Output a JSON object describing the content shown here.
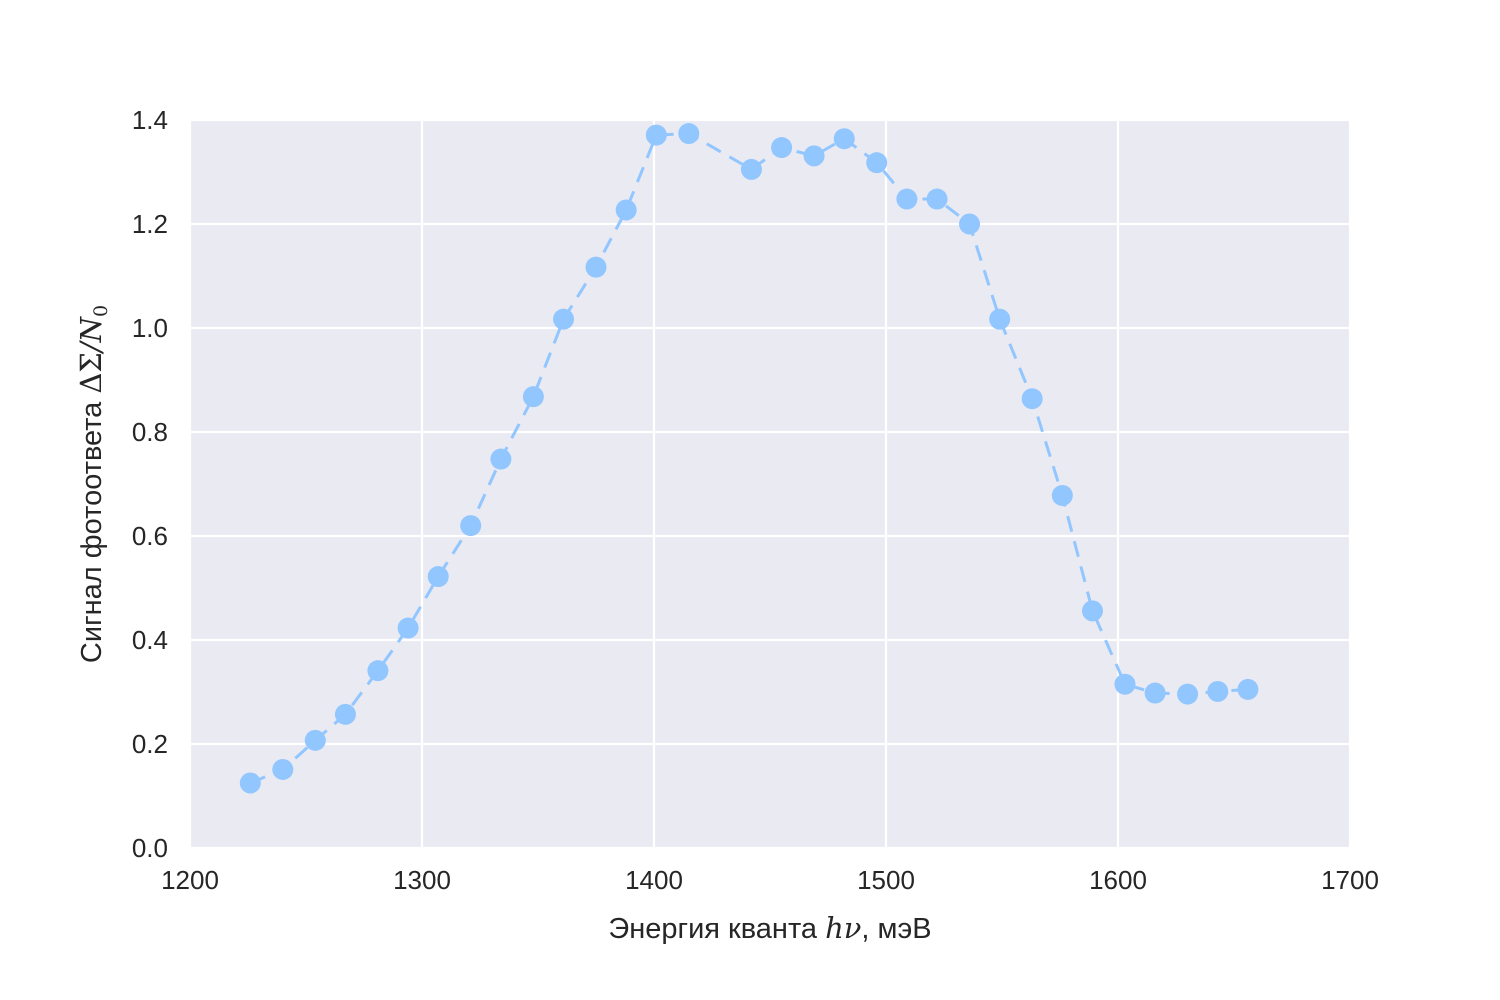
{
  "chart_data": {
    "type": "line",
    "title": "",
    "xlabel": {
      "prefix": "Энергия кванта ",
      "math": "hν",
      "suffix": ", мэВ"
    },
    "ylabel": {
      "prefix": "Сигнал фотоответа ",
      "math_delta": "ΔΣ",
      "math_rest": "/N",
      "math_sub": "0"
    },
    "xlim": [
      1200,
      1700
    ],
    "ylim": [
      0.0,
      1.4
    ],
    "xticks": [
      1200,
      1300,
      1400,
      1500,
      1600,
      1700
    ],
    "yticks": [
      0.0,
      0.2,
      0.4,
      0.6,
      0.8,
      1.0,
      1.2,
      1.4
    ],
    "ytick_labels": [
      "0.0",
      "0.2",
      "0.4",
      "0.6",
      "0.8",
      "1.0",
      "1.2",
      "1.4"
    ],
    "xtick_labels": [
      "1200",
      "1300",
      "1400",
      "1500",
      "1600",
      "1700"
    ],
    "grid": true,
    "background": "#eaeaf2",
    "grid_color": "#ffffff",
    "series": [
      {
        "color": "#92c6ff",
        "linestyle": "dashed",
        "marker": "circle",
        "x": [
          1226,
          1240,
          1254,
          1267,
          1281,
          1294,
          1307,
          1321,
          1334,
          1348,
          1361,
          1375,
          1388,
          1401,
          1415,
          1442,
          1455,
          1469,
          1482,
          1496,
          1509,
          1522,
          1536,
          1549,
          1563,
          1576,
          1589,
          1603,
          1616,
          1630,
          1643,
          1656
        ],
        "y": [
          0.125,
          0.151,
          0.207,
          0.257,
          0.341,
          0.423,
          0.522,
          0.62,
          0.748,
          0.868,
          1.017,
          1.117,
          1.227,
          1.371,
          1.374,
          1.305,
          1.347,
          1.331,
          1.364,
          1.318,
          1.248,
          1.248,
          1.2,
          1.017,
          0.864,
          0.678,
          0.456,
          0.315,
          0.298,
          0.296,
          0.301,
          0.305
        ]
      }
    ]
  }
}
